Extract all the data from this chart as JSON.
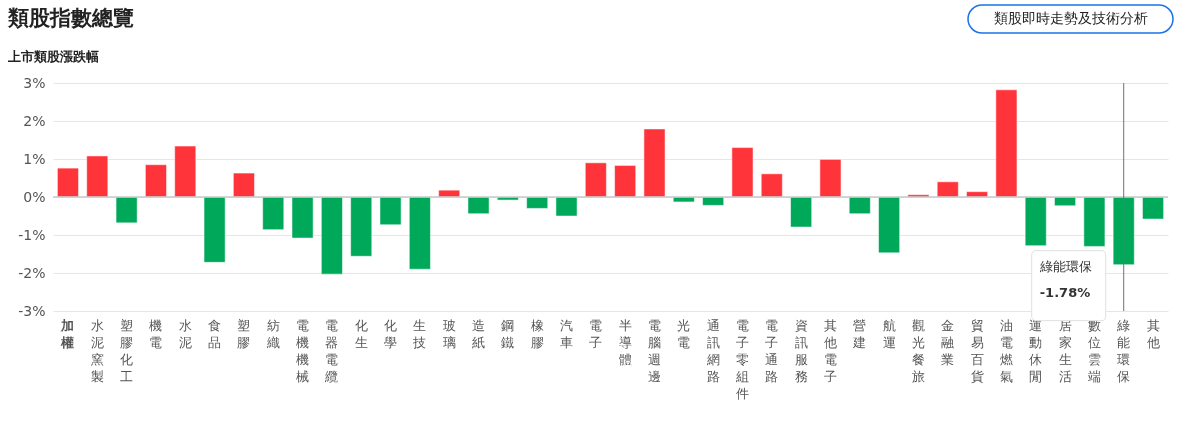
{
  "chart_data": {
    "type": "bar",
    "title": "類股指數總覽",
    "subtitle": "上市類股漲跌幅",
    "categories": [
      "加權",
      "水泥窯製",
      "塑膠化工",
      "機電",
      "水泥",
      "食品",
      "塑膠",
      "紡織",
      "電機機械",
      "電器電纜",
      "化生",
      "化學",
      "生技",
      "玻璃",
      "造紙",
      "鋼鐵",
      "橡膠",
      "汽車",
      "電子",
      "半導體",
      "電腦週邊",
      "光電",
      "通訊網路",
      "電子零組件",
      "電子通路",
      "資訊服務",
      "其他電子",
      "營建",
      "航運",
      "觀光餐旅",
      "金融業",
      "貿易百貨",
      "油電燃氣",
      "運動休閒",
      "居家生活",
      "數位雲端",
      "綠能環保",
      "其他"
    ],
    "values": [
      0.76,
      1.08,
      -0.68,
      0.85,
      1.34,
      -1.72,
      0.63,
      -0.86,
      -1.08,
      -2.03,
      -1.56,
      -0.73,
      -1.9,
      0.18,
      -0.44,
      -0.08,
      -0.3,
      -0.5,
      0.9,
      0.83,
      1.79,
      -0.13,
      -0.22,
      1.3,
      0.61,
      -0.79,
      0.99,
      -0.44,
      -1.47,
      0.06,
      0.4,
      0.14,
      2.82,
      -1.28,
      -0.23,
      -1.3,
      -1.78,
      -0.58
    ],
    "colors": [
      "#ff333a",
      "#ff333a",
      "#00a85a",
      "#ff333a",
      "#ff333a",
      "#00a85a",
      "#ff333a",
      "#00a85a",
      "#00a85a",
      "#00a85a",
      "#00a85a",
      "#00a85a",
      "#00a85a",
      "#ff333a",
      "#00a85a",
      "#00a85a",
      "#00a85a",
      "#00a85a",
      "#ff333a",
      "#ff333a",
      "#ff333a",
      "#00a85a",
      "#00a85a",
      "#ff333a",
      "#ff333a",
      "#00a85a",
      "#ff333a",
      "#00a85a",
      "#00a85a",
      "#ff333a",
      "#ff333a",
      "#ff333a",
      "#ff333a",
      "#00a85a",
      "#00a85a",
      "#00a85a",
      "#00a85a",
      "#00a85a"
    ],
    "ylim": [
      -3,
      3
    ],
    "yticks": [
      {
        "value": -3,
        "label": "-3%"
      },
      {
        "value": -2,
        "label": "-2%"
      },
      {
        "value": -1,
        "label": "-1%"
      },
      {
        "value": 0,
        "label": "0%"
      },
      {
        "value": 1,
        "label": "1%"
      },
      {
        "value": 2,
        "label": "2%"
      },
      {
        "value": 3,
        "label": "3%"
      }
    ],
    "grid": "y",
    "ref_lines": [
      {
        "axis": "x",
        "value": "綠能環保",
        "color": "#6b7280"
      }
    ],
    "annotations": [
      {
        "text": "綠能環保\n-1.78%",
        "x": "綠能環保",
        "y": -1.78
      },
      "類股即時走勢及技術分析"
    ]
  }
}
